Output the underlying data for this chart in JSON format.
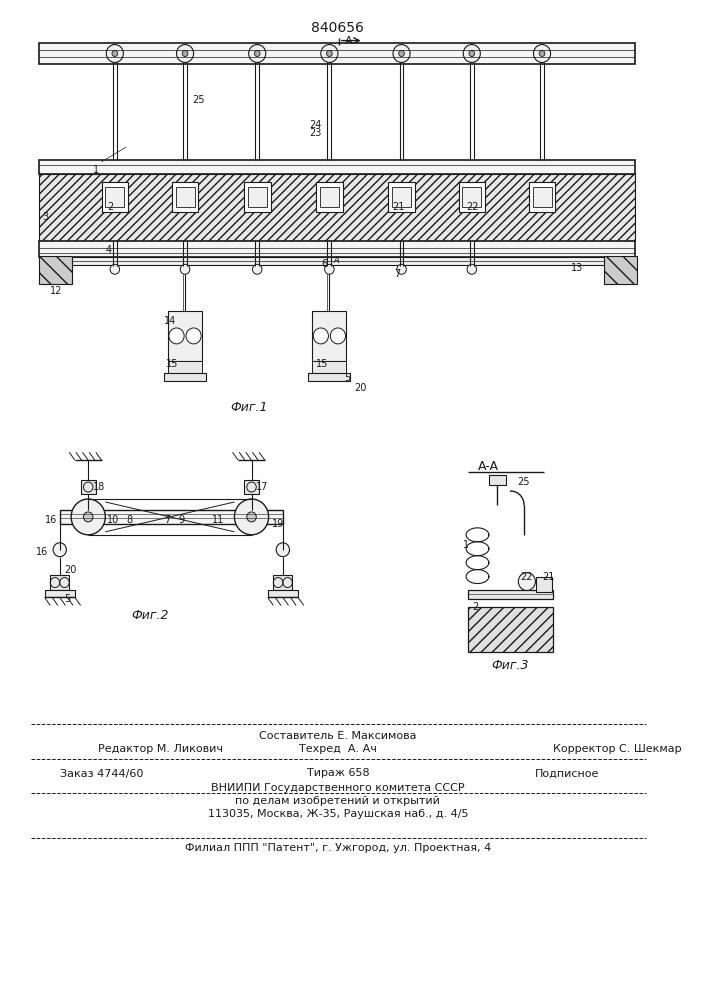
{
  "title": "840656",
  "bg": "#ffffff",
  "lc": "#1a1a1a",
  "footer_lines": [
    "Составитель Е. Максимова",
    "Редактор М. Ликович",
    "Техред   А. Ач",
    "Корректор С. Шекмар",
    "Заказ 4744/60",
    "Тираж 658",
    "Подписное",
    "ВНИИПИ Государственного комитета СССР",
    "по делам изобретений и открытий",
    "113035, Москва, Ж-35, Раушская наб., д. 4/5",
    "Филиал ППП \"Патент\", г. Ужгород, ул. Проектная, 4"
  ]
}
